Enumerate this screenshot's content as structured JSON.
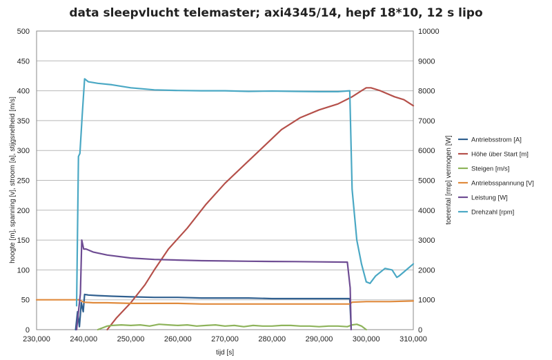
{
  "chart_data": {
    "type": "line",
    "title": "data sleepvlucht telemaster; axi4345/14, hepf 18*10, 12 s lipo",
    "xlabel": "tijd [s]",
    "ylabel_left": "hoogte [m], spanning [v], stroom [a], stijgsnelheid [m/s]",
    "ylabel_right": "toerental [rmp] vermogen [W]",
    "xlim": [
      230000,
      310000
    ],
    "ylim_left": [
      0,
      500
    ],
    "ylim_right": [
      0,
      10000
    ],
    "x_ticks": [
      230000,
      240000,
      250000,
      260000,
      270000,
      280000,
      290000,
      300000,
      310000
    ],
    "x_tick_labels": [
      "230,000",
      "240,000",
      "250,000",
      "260,000",
      "270,000",
      "280,000",
      "290,000",
      "300,000",
      "310,000"
    ],
    "y_left_ticks": [
      0,
      50,
      100,
      150,
      200,
      250,
      300,
      350,
      400,
      450,
      500
    ],
    "y_right_ticks": [
      0,
      1000,
      2000,
      3000,
      4000,
      5000,
      6000,
      7000,
      8000,
      9000,
      10000
    ],
    "grid": true,
    "legend_position": "right",
    "series": [
      {
        "name": "Antriebsstrom [A]",
        "color": "#2f5f8f",
        "axis": "left",
        "x": [
          238300,
          238700,
          239100,
          239500,
          239900,
          240200,
          241000,
          243000,
          246000,
          250000,
          255000,
          260000,
          265000,
          270000,
          275000,
          280000,
          285000,
          290000,
          294000,
          296500,
          296800
        ],
        "y": [
          0,
          30,
          5,
          45,
          30,
          59,
          58,
          57,
          56,
          55,
          54,
          54,
          53,
          53,
          53,
          52,
          52,
          52,
          52,
          52,
          3
        ]
      },
      {
        "name": "Höhe über Start [m]",
        "color": "#b5504a",
        "axis": "left",
        "x": [
          245000,
          247000,
          250000,
          253000,
          255000,
          258000,
          262000,
          266000,
          270000,
          274000,
          278000,
          282000,
          286000,
          290000,
          294000,
          297000,
          299000,
          300000,
          301000,
          303000,
          306000,
          308000,
          310000
        ],
        "y": [
          0,
          20,
          45,
          75,
          100,
          135,
          170,
          210,
          245,
          275,
          305,
          335,
          355,
          368,
          378,
          390,
          400,
          405,
          405,
          400,
          390,
          385,
          375
        ]
      },
      {
        "name": "Steigen [m/s]",
        "color": "#8db35a",
        "axis": "left",
        "x": [
          243000,
          244000,
          245000,
          246000,
          248000,
          250000,
          252000,
          254000,
          256000,
          258000,
          260000,
          262000,
          264000,
          266000,
          268000,
          270000,
          272000,
          274000,
          276000,
          278000,
          280000,
          282000,
          284000,
          286000,
          288000,
          290000,
          292000,
          294000,
          296000,
          297000,
          298000,
          299000,
          300000
        ],
        "y": [
          0,
          3,
          6,
          7,
          8,
          7,
          8,
          6,
          9,
          8,
          7,
          8,
          6,
          7,
          8,
          6,
          7,
          5,
          7,
          6,
          6,
          7,
          7,
          6,
          6,
          5,
          6,
          6,
          5,
          8,
          9,
          6,
          0
        ]
      },
      {
        "name": "Antriebsspannung [V]",
        "color": "#e08a3c",
        "axis": "left",
        "x": [
          230000,
          235000,
          238000,
          239000,
          240000,
          242000,
          245000,
          250000,
          255000,
          260000,
          265000,
          270000,
          275000,
          280000,
          285000,
          290000,
          296500,
          297000,
          300000,
          305000,
          310000
        ],
        "y": [
          50,
          50,
          50,
          50,
          46,
          45,
          45,
          44,
          44,
          44,
          43,
          43,
          43,
          43,
          43,
          43,
          43,
          46,
          47,
          47,
          48
        ]
      },
      {
        "name": "Leistung [W]",
        "color": "#6e4c93",
        "axis": "right",
        "x": [
          238500,
          238900,
          239300,
          239600,
          240000,
          240500,
          242000,
          245000,
          250000,
          255000,
          260000,
          265000,
          270000,
          275000,
          280000,
          285000,
          290000,
          296000,
          296600,
          296800
        ],
        "y": [
          0,
          600,
          1200,
          3000,
          2700,
          2700,
          2600,
          2500,
          2400,
          2350,
          2330,
          2310,
          2300,
          2290,
          2285,
          2280,
          2270,
          2260,
          1400,
          0
        ]
      },
      {
        "name": "Drehzahl [rpm]",
        "color": "#4aa8c4",
        "axis": "right",
        "x": [
          238500,
          238900,
          239200,
          239700,
          240200,
          241000,
          243000,
          246000,
          250000,
          255000,
          260000,
          265000,
          270000,
          275000,
          280000,
          285000,
          290000,
          294000,
          296500,
          297000,
          298000,
          299000,
          300000,
          300800,
          302000,
          304000,
          305500,
          306500,
          307000,
          308500,
          310000
        ],
        "y": [
          800,
          5800,
          5900,
          7200,
          8400,
          8300,
          8250,
          8200,
          8100,
          8030,
          8010,
          8000,
          8000,
          7980,
          7990,
          7980,
          7970,
          7970,
          8000,
          4700,
          3000,
          2200,
          1600,
          1550,
          1800,
          2050,
          2000,
          1750,
          1800,
          2000,
          2200
        ]
      }
    ]
  }
}
